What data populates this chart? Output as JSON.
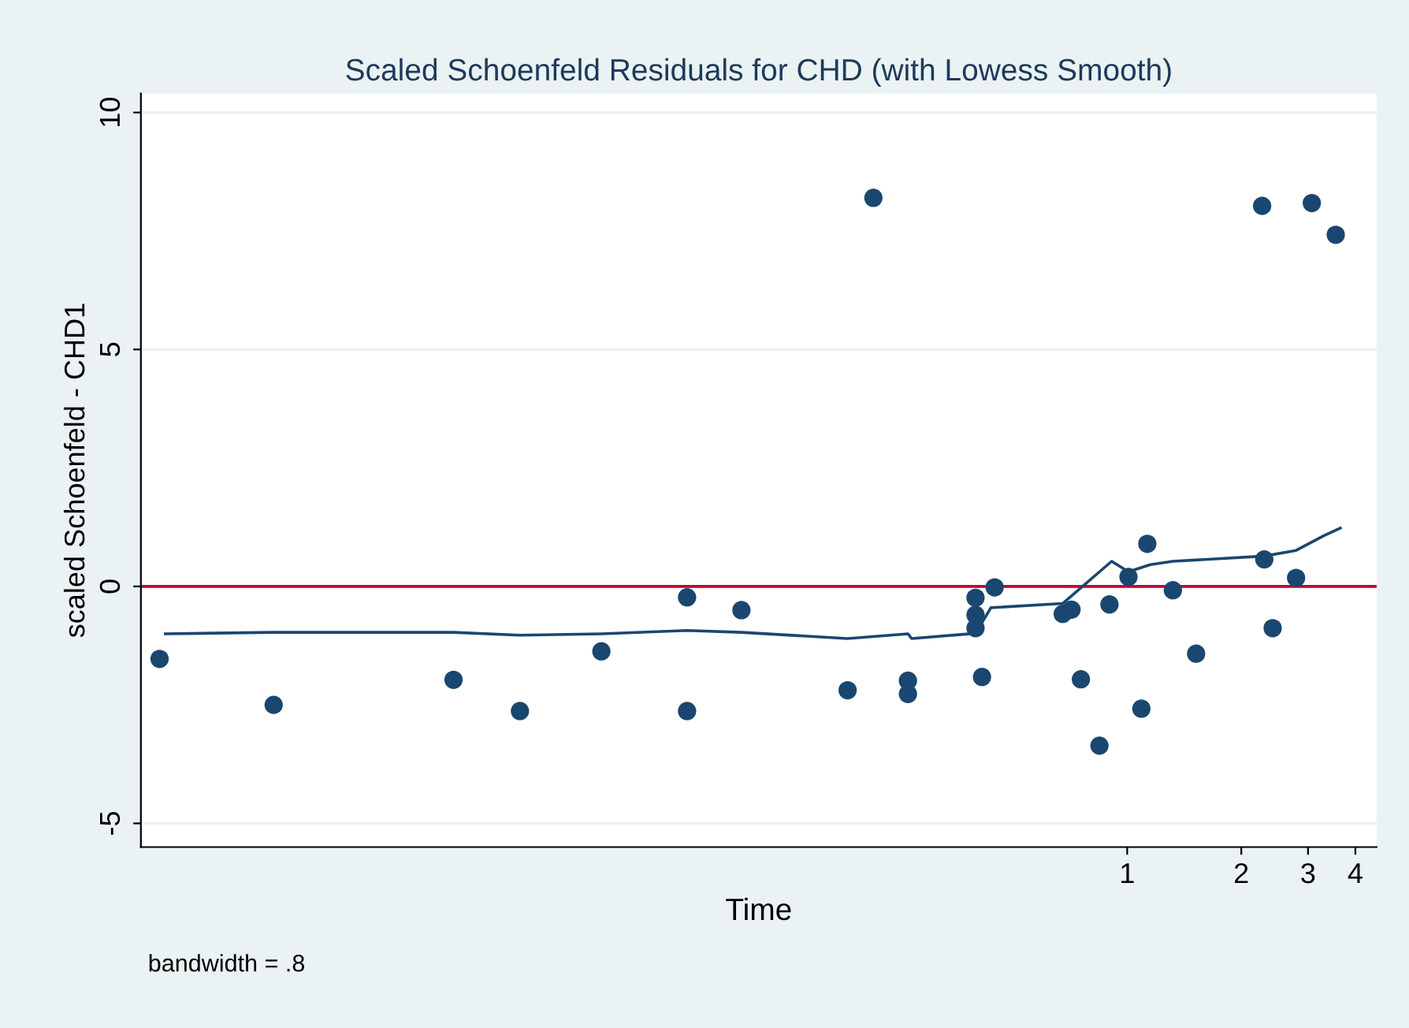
{
  "chart_data": {
    "type": "scatter",
    "title": "Scaled Schoenfeld Residuals for CHD (with Lowess Smooth)",
    "xlabel": "Time",
    "ylabel": "scaled Schoenfeld - CHD1",
    "annotations": [
      "bandwidth = .8"
    ],
    "series": [
      {
        "marker": "circle",
        "color": "#1a476f",
        "x": [
          0.0028,
          0.0056,
          0.0167,
          0.025,
          0.041,
          0.069,
          0.069,
          0.096,
          0.214,
          0.183,
          0.264,
          0.264,
          0.398,
          0.398,
          0.398,
          0.414,
          0.447,
          0.676,
          0.713,
          0.755,
          0.845,
          0.898,
          1.008,
          1.09,
          1.13,
          1.32,
          1.52,
          2.3,
          2.42,
          2.79,
          2.27,
          3.07,
          3.55
        ],
        "values": [
          -1.53,
          -2.5,
          -1.97,
          -2.63,
          -1.37,
          -0.23,
          -2.63,
          -0.5,
          8.2,
          -2.19,
          -1.99,
          -2.27,
          -0.24,
          -0.6,
          -0.88,
          -1.91,
          -0.02,
          -0.58,
          -0.49,
          -1.96,
          -3.36,
          -0.38,
          0.2,
          -2.58,
          0.9,
          -0.08,
          -1.42,
          0.57,
          -0.88,
          0.18,
          8.03,
          8.09,
          7.42
        ]
      },
      {
        "type": "line",
        "color": "#1a476f",
        "x": [
          0.0029,
          0.0056,
          0.0167,
          0.025,
          0.041,
          0.069,
          0.096,
          0.183,
          0.264,
          0.27,
          0.398,
          0.437,
          0.676,
          0.91,
          1.008,
          1.15,
          1.32,
          2.3,
          2.79,
          3.3,
          3.65
        ],
        "values": [
          -1.0,
          -0.97,
          -0.97,
          -1.03,
          -1.0,
          -0.93,
          -0.97,
          -1.1,
          -1.0,
          -1.1,
          -0.99,
          -0.45,
          -0.36,
          0.53,
          0.31,
          0.46,
          0.53,
          0.64,
          0.76,
          1.07,
          1.23
        ]
      }
    ],
    "ref_lines": [
      {
        "axis": "y",
        "value": 0,
        "color": "#c10534"
      }
    ],
    "log": "x",
    "xlim": [
      0.0025,
      4.55
    ],
    "xticks": [
      1,
      2,
      3,
      4
    ],
    "ylim": [
      -5.5,
      10.4
    ],
    "yticks": [
      -5,
      0,
      5,
      10
    ],
    "grid": "y",
    "line_style": "solid"
  }
}
